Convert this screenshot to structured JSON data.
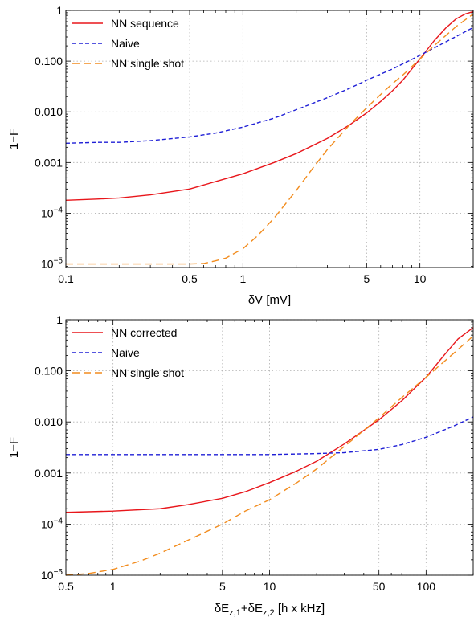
{
  "chart_data": [
    {
      "type": "line",
      "title": "",
      "xlabel": "δV [mV]",
      "ylabel": "1−F",
      "xscale": "log",
      "yscale": "log",
      "xlim": [
        0.1,
        20
      ],
      "ylim": [
        8.5e-06,
        1.0
      ],
      "grid": true,
      "legend_position": "top-left",
      "xticks": [
        {
          "value": 0.1,
          "label": "0.1"
        },
        {
          "value": 0.5,
          "label": "0.5"
        },
        {
          "value": 1,
          "label": "1"
        },
        {
          "value": 5,
          "label": "5"
        },
        {
          "value": 10,
          "label": "10"
        }
      ],
      "yticks": [
        {
          "value": 1e-05,
          "base": "10",
          "exp": "−5"
        },
        {
          "value": 0.0001,
          "base": "10",
          "exp": "−4"
        },
        {
          "value": 0.001,
          "label": "0.001"
        },
        {
          "value": 0.01,
          "label": "0.010"
        },
        {
          "value": 0.1,
          "label": "0.100"
        },
        {
          "value": 1,
          "label": "1"
        }
      ],
      "series": [
        {
          "name": "NN sequence",
          "color": "#e8161b",
          "style": "solid",
          "x": [
            0.1,
            0.15,
            0.2,
            0.3,
            0.5,
            0.7,
            1,
            1.5,
            2,
            3,
            4,
            5,
            6,
            7,
            8,
            9,
            10,
            12,
            14,
            16,
            18,
            20
          ],
          "y": [
            0.00018,
            0.00019,
            0.0002,
            0.00023,
            0.0003,
            0.00042,
            0.0006,
            0.001,
            0.0015,
            0.003,
            0.0055,
            0.0095,
            0.016,
            0.026,
            0.042,
            0.07,
            0.11,
            0.25,
            0.45,
            0.68,
            0.85,
            0.95
          ]
        },
        {
          "name": "Naive",
          "color": "#1f1fd6",
          "style": "dash-short",
          "x": [
            0.1,
            0.15,
            0.2,
            0.3,
            0.5,
            0.7,
            1,
            1.5,
            2,
            3,
            4,
            5,
            7,
            10,
            14,
            20
          ],
          "y": [
            0.0024,
            0.0025,
            0.0025,
            0.0027,
            0.0032,
            0.0038,
            0.005,
            0.0075,
            0.011,
            0.019,
            0.029,
            0.042,
            0.07,
            0.13,
            0.24,
            0.46
          ]
        },
        {
          "name": "NN single shot",
          "color": "#f28c1e",
          "style": "dash-long",
          "x": [
            0.1,
            0.2,
            0.3,
            0.5,
            0.6,
            0.7,
            0.8,
            1,
            1.2,
            1.5,
            2,
            2.5,
            3,
            4,
            5,
            6,
            7,
            8,
            10,
            12,
            14,
            16,
            18,
            20
          ],
          "y": [
            1e-05,
            1e-05,
            1e-05,
            1e-05,
            1.02e-05,
            1.15e-05,
            1.3e-05,
            2e-05,
            3.5e-05,
            8e-05,
            0.00028,
            0.0008,
            0.0018,
            0.0055,
            0.012,
            0.022,
            0.036,
            0.053,
            0.11,
            0.2,
            0.32,
            0.48,
            0.65,
            0.85
          ]
        }
      ]
    },
    {
      "type": "line",
      "title": "",
      "xlabel_parts": {
        "pre": "δE",
        "sub1": "z,1",
        "mid": "+δE",
        "sub2": "z,2",
        "post": " [h x kHz]"
      },
      "ylabel": "1−F",
      "xscale": "log",
      "yscale": "log",
      "xlim": [
        0.5,
        200
      ],
      "ylim": [
        1e-05,
        1.0
      ],
      "grid": true,
      "legend_position": "top-left",
      "xticks": [
        {
          "value": 0.5,
          "label": "0.5"
        },
        {
          "value": 1,
          "label": "1"
        },
        {
          "value": 5,
          "label": "5"
        },
        {
          "value": 10,
          "label": "10"
        },
        {
          "value": 50,
          "label": "50"
        },
        {
          "value": 100,
          "label": "100"
        }
      ],
      "yticks": [
        {
          "value": 1e-05,
          "base": "10",
          "exp": "−5"
        },
        {
          "value": 0.0001,
          "base": "10",
          "exp": "−4"
        },
        {
          "value": 0.001,
          "label": "0.001"
        },
        {
          "value": 0.01,
          "label": "0.010"
        },
        {
          "value": 0.1,
          "label": "0.100"
        },
        {
          "value": 1,
          "label": "1"
        }
      ],
      "series": [
        {
          "name": "NN corrected",
          "color": "#e8161b",
          "style": "solid",
          "x": [
            0.5,
            1,
            2,
            3,
            5,
            7,
            10,
            15,
            20,
            30,
            50,
            70,
            100,
            130,
            160,
            200
          ],
          "y": [
            0.00017,
            0.00018,
            0.0002,
            0.00024,
            0.00032,
            0.00043,
            0.00065,
            0.0011,
            0.0017,
            0.0037,
            0.011,
            0.026,
            0.075,
            0.2,
            0.42,
            0.7
          ]
        },
        {
          "name": "Naive",
          "color": "#1f1fd6",
          "style": "dash-short",
          "x": [
            0.5,
            1,
            2,
            5,
            10,
            20,
            30,
            50,
            70,
            100,
            150,
            200
          ],
          "y": [
            0.0023,
            0.0023,
            0.0023,
            0.0023,
            0.0023,
            0.0024,
            0.0025,
            0.0029,
            0.0036,
            0.005,
            0.0083,
            0.0125
          ]
        },
        {
          "name": "NN single shot",
          "color": "#f28c1e",
          "style": "dash-long",
          "x": [
            0.5,
            0.7,
            1,
            1.5,
            2,
            3,
            5,
            7,
            10,
            15,
            20,
            30,
            50,
            70,
            100,
            150,
            200
          ],
          "y": [
            1e-05,
            1.08e-05,
            1.3e-05,
            1.9e-05,
            2.7e-05,
            4.8e-05,
            0.0001,
            0.00018,
            0.0003,
            0.00065,
            0.0012,
            0.0033,
            0.012,
            0.03,
            0.075,
            0.22,
            0.48
          ]
        }
      ]
    }
  ]
}
